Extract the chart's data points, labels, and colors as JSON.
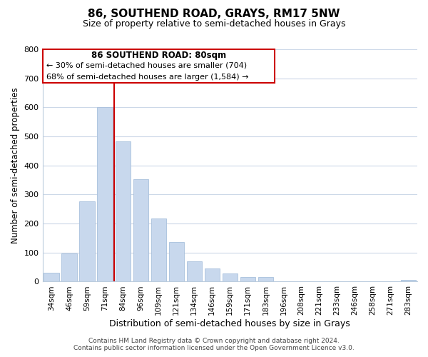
{
  "title": "86, SOUTHEND ROAD, GRAYS, RM17 5NW",
  "subtitle": "Size of property relative to semi-detached houses in Grays",
  "xlabel": "Distribution of semi-detached houses by size in Grays",
  "ylabel": "Number of semi-detached properties",
  "bar_labels": [
    "34sqm",
    "46sqm",
    "59sqm",
    "71sqm",
    "84sqm",
    "96sqm",
    "109sqm",
    "121sqm",
    "134sqm",
    "146sqm",
    "159sqm",
    "171sqm",
    "183sqm",
    "196sqm",
    "208sqm",
    "221sqm",
    "233sqm",
    "246sqm",
    "258sqm",
    "271sqm",
    "283sqm"
  ],
  "bar_values": [
    30,
    97,
    277,
    600,
    483,
    352,
    218,
    137,
    70,
    45,
    28,
    15,
    17,
    0,
    0,
    0,
    0,
    0,
    0,
    0,
    5
  ],
  "bar_color": "#c8d8ed",
  "bar_edge_color": "#a8c0dc",
  "vline_color": "#cc0000",
  "vline_x_idx": 3.5,
  "annotation_title": "86 SOUTHEND ROAD: 80sqm",
  "annotation_line1": "← 30% of semi-detached houses are smaller (704)",
  "annotation_line2": "68% of semi-detached houses are larger (1,584) →",
  "annotation_box_color": "#ffffff",
  "annotation_box_edge": "#cc0000",
  "ylim": [
    0,
    800
  ],
  "yticks": [
    0,
    100,
    200,
    300,
    400,
    500,
    600,
    700,
    800
  ],
  "footer_line1": "Contains HM Land Registry data © Crown copyright and database right 2024.",
  "footer_line2": "Contains public sector information licensed under the Open Government Licence v3.0.",
  "background_color": "#ffffff",
  "grid_color": "#ccd8e8",
  "title_fontsize": 11,
  "subtitle_fontsize": 9
}
